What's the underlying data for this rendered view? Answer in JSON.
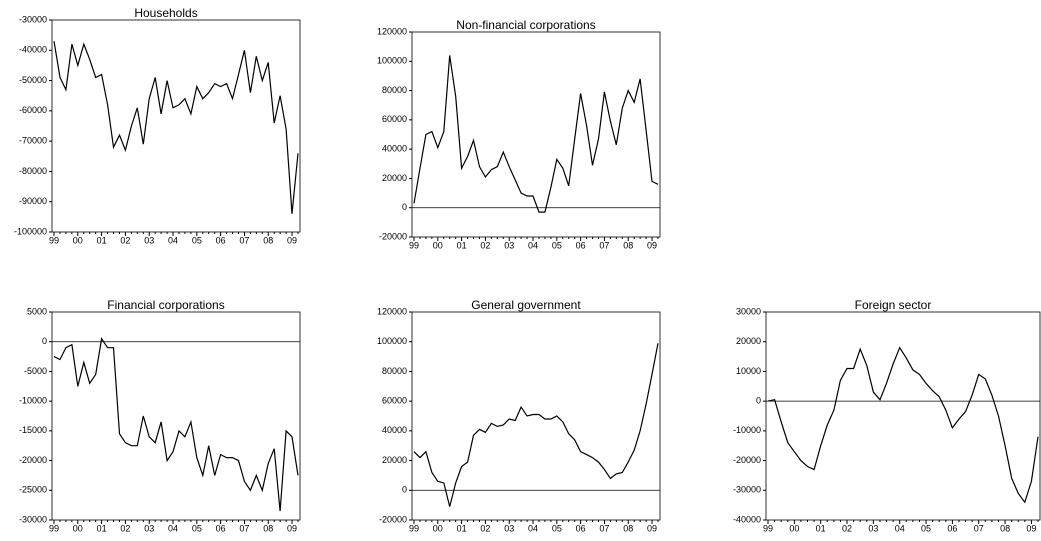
{
  "chart_data": [
    {
      "type": "line",
      "title": "Households",
      "color": "#000000",
      "categories": [
        "99",
        null,
        null,
        null,
        "00",
        null,
        null,
        null,
        "01",
        null,
        null,
        null,
        "02",
        null,
        null,
        null,
        "03",
        null,
        null,
        null,
        "04",
        null,
        null,
        null,
        "05",
        null,
        null,
        null,
        "06",
        null,
        null,
        null,
        "07",
        null,
        null,
        null,
        "08",
        null,
        null,
        null,
        "09",
        null
      ],
      "values": [
        -37000,
        -49000,
        -53000,
        -38000,
        -45000,
        -38000,
        -43000,
        -49000,
        -48000,
        -58000,
        -72000,
        -68000,
        -73000,
        -65000,
        -59000,
        -71000,
        -56000,
        -49000,
        -61000,
        -50000,
        -59000,
        -58000,
        -56000,
        -61000,
        -52000,
        -56000,
        -54000,
        -51000,
        -52000,
        -51000,
        -56000,
        -48000,
        -40000,
        -54000,
        -42000,
        -50000,
        -44000,
        -64000,
        -55000,
        -66000,
        -94000,
        -74000
      ],
      "ylim": [
        -100000,
        -30000
      ],
      "yticks": [
        -100000,
        -90000,
        -80000,
        -70000,
        -60000,
        -50000,
        -40000,
        -30000
      ]
    },
    {
      "type": "line",
      "title": "Non-financial corporations",
      "color": "#000000",
      "categories": [
        "99",
        null,
        null,
        null,
        "00",
        null,
        null,
        null,
        "01",
        null,
        null,
        null,
        "02",
        null,
        null,
        null,
        "03",
        null,
        null,
        null,
        "04",
        null,
        null,
        null,
        "05",
        null,
        null,
        null,
        "06",
        null,
        null,
        null,
        "07",
        null,
        null,
        null,
        "08",
        null,
        null,
        null,
        "09",
        null
      ],
      "values": [
        3000,
        27000,
        50000,
        52000,
        41000,
        52000,
        104000,
        76000,
        27000,
        35000,
        46000,
        28000,
        21000,
        26000,
        28000,
        38000,
        28000,
        19000,
        10000,
        8000,
        8000,
        -3000,
        -3000,
        14000,
        33000,
        27000,
        15000,
        47000,
        78000,
        56000,
        29000,
        47000,
        79000,
        59000,
        43000,
        68000,
        80000,
        72000,
        88000,
        53000,
        18000,
        16000
      ],
      "ylim": [
        -20000,
        120000
      ],
      "yticks": [
        -20000,
        0,
        20000,
        40000,
        60000,
        80000,
        100000,
        120000
      ]
    },
    {
      "type": "line",
      "title": "Financial corporations",
      "color": "#000000",
      "categories": [
        "99",
        null,
        null,
        null,
        "00",
        null,
        null,
        null,
        "01",
        null,
        null,
        null,
        "02",
        null,
        null,
        null,
        "03",
        null,
        null,
        null,
        "04",
        null,
        null,
        null,
        "05",
        null,
        null,
        null,
        "06",
        null,
        null,
        null,
        "07",
        null,
        null,
        null,
        "08",
        null,
        null,
        null,
        "09",
        null
      ],
      "values": [
        -2500,
        -3000,
        -1000,
        -500,
        -7500,
        -3500,
        -7000,
        -5500,
        500,
        -1000,
        -1000,
        -15500,
        -17000,
        -17500,
        -17500,
        -12500,
        -16000,
        -17000,
        -13500,
        -20000,
        -18500,
        -15000,
        -16000,
        -13500,
        -19500,
        -22500,
        -17500,
        -22500,
        -19000,
        -19500,
        -19500,
        -20000,
        -23500,
        -25000,
        -22500,
        -25000,
        -20500,
        -18000,
        -28500,
        -15000,
        -16000,
        -22500
      ],
      "ylim": [
        -30000,
        5000
      ],
      "yticks": [
        -30000,
        -25000,
        -20000,
        -15000,
        -10000,
        -5000,
        0,
        5000
      ]
    },
    {
      "type": "line",
      "title": "General government",
      "color": "#000000",
      "categories": [
        "99",
        null,
        null,
        null,
        "00",
        null,
        null,
        null,
        "01",
        null,
        null,
        null,
        "02",
        null,
        null,
        null,
        "03",
        null,
        null,
        null,
        "04",
        null,
        null,
        null,
        "05",
        null,
        null,
        null,
        "06",
        null,
        null,
        null,
        "07",
        null,
        null,
        null,
        "08",
        null,
        null,
        null,
        "09",
        null
      ],
      "values": [
        26000,
        22000,
        26000,
        12000,
        6000,
        5000,
        -11000,
        5000,
        16000,
        19000,
        37000,
        41000,
        39000,
        45000,
        43000,
        44000,
        48000,
        47000,
        56000,
        50000,
        51000,
        51000,
        48000,
        48000,
        50000,
        46000,
        38000,
        34000,
        26000,
        24000,
        22000,
        19000,
        14000,
        8000,
        11000,
        12000,
        19000,
        27000,
        40000,
        58000,
        78000,
        99000
      ],
      "ylim": [
        -20000,
        120000
      ],
      "yticks": [
        -20000,
        0,
        20000,
        40000,
        60000,
        80000,
        100000,
        120000
      ]
    },
    {
      "type": "line",
      "title": "Foreign sector",
      "color": "#000000",
      "categories": [
        "99",
        null,
        null,
        null,
        "00",
        null,
        null,
        null,
        "01",
        null,
        null,
        null,
        "02",
        null,
        null,
        null,
        "03",
        null,
        null,
        null,
        "04",
        null,
        null,
        null,
        "05",
        null,
        null,
        null,
        "06",
        null,
        null,
        null,
        "07",
        null,
        null,
        null,
        "08",
        null,
        null,
        null,
        "09",
        null
      ],
      "values": [
        0,
        500,
        -7000,
        -14000,
        -17000,
        -20000,
        -22000,
        -23000,
        -15000,
        -8000,
        -3000,
        7000,
        11000,
        11000,
        17500,
        12000,
        3000,
        500,
        6000,
        12500,
        18000,
        14500,
        10500,
        9000,
        6000,
        3500,
        1500,
        -3000,
        -9000,
        -6000,
        -3500,
        2000,
        9000,
        7500,
        2000,
        -5000,
        -15000,
        -26000,
        -31000,
        -34000,
        -27000,
        -12000
      ],
      "ylim": [
        -40000,
        30000
      ],
      "yticks": [
        -40000,
        -30000,
        -20000,
        -10000,
        0,
        10000,
        20000,
        30000
      ]
    }
  ]
}
